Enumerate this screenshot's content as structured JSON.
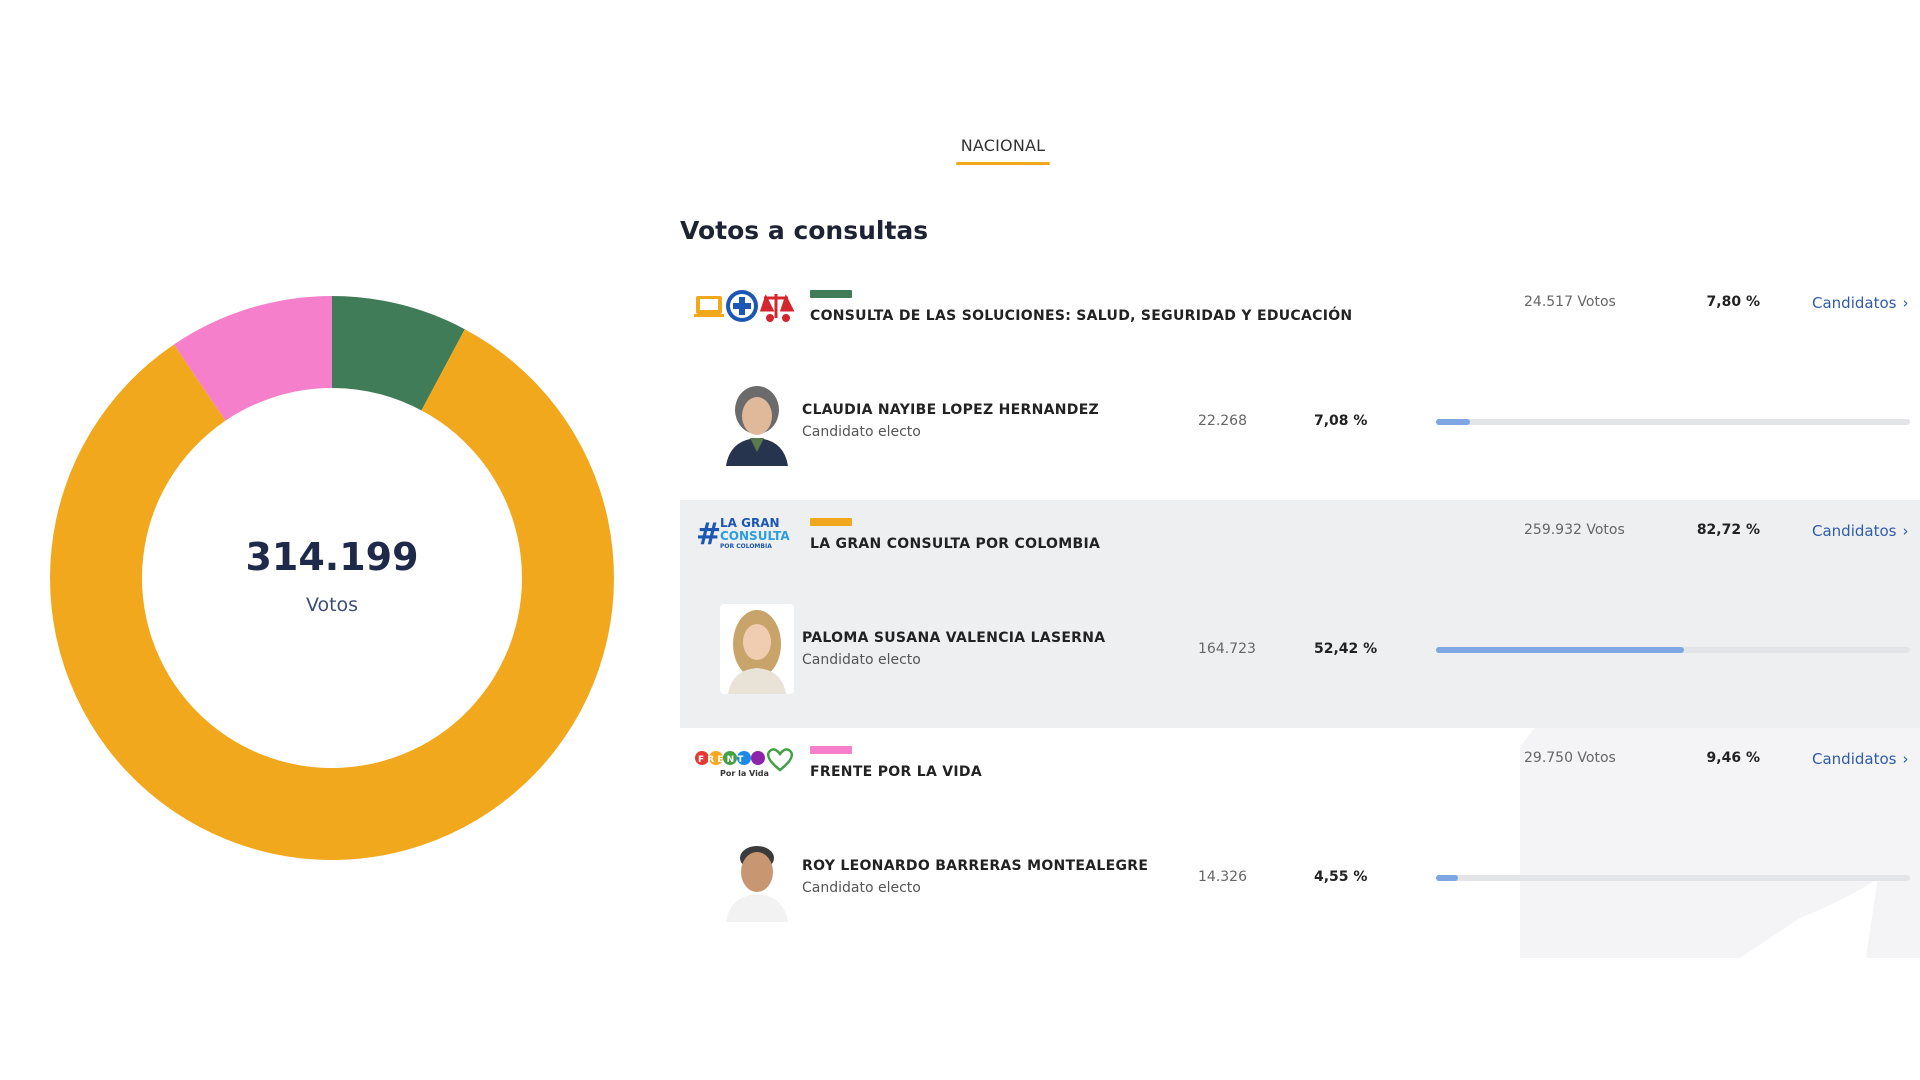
{
  "tabs": [
    {
      "label": "NACIONAL",
      "active": true
    }
  ],
  "section_title": "Votos a consultas",
  "total": {
    "value": "314.199",
    "unit": "Votos"
  },
  "colors": {
    "accent": "#f2a81d",
    "bar": "#7da6e3",
    "link": "#2f5ba7"
  },
  "chart_data": {
    "type": "pie",
    "donut": true,
    "series": [
      {
        "name": "CONSULTA DE LAS SOLUCIONES: SALUD, SEGURIDAD Y EDUCACIÓN",
        "value": 24517,
        "color": "#3f7c57"
      },
      {
        "name": "LA GRAN CONSULTA POR COLOMBIA",
        "value": 259932,
        "color": "#f2a81d"
      },
      {
        "name": "FRENTE POR LA VIDA",
        "value": 29750,
        "color": "#f57fca"
      }
    ]
  },
  "consultas": [
    {
      "logo_icon": "consulta-soluciones-logo-icon",
      "color": "#3f7c57",
      "name": "CONSULTA DE LAS SOLUCIONES: SALUD, SEGURIDAD Y EDUCACIÓN",
      "votes": "24.517 Votos",
      "pct": "7,80 %",
      "link": "Candidatos",
      "shaded": false,
      "candidate": {
        "name": "CLAUDIA NAYIBE LOPEZ HERNANDEZ",
        "status": "Candidato electo",
        "votes": "22.268",
        "pct": "7,08 %",
        "share": 7.08
      }
    },
    {
      "logo_icon": "la-gran-consulta-logo-icon",
      "logo_text": "#LA GRAN CONSULTA POR COLOMBIA",
      "color": "#f2a81d",
      "name": "LA GRAN CONSULTA POR COLOMBIA",
      "votes": "259.932 Votos",
      "pct": "82,72 %",
      "link": "Candidatos",
      "shaded": true,
      "candidate": {
        "name": "PALOMA SUSANA VALENCIA LASERNA",
        "status": "Candidato electo",
        "votes": "164.723",
        "pct": "52,42 %",
        "share": 52.42
      }
    },
    {
      "logo_icon": "frente-por-la-vida-logo-icon",
      "logo_text": "FRENTE Por la Vida",
      "color": "#f57fca",
      "name": "FRENTE POR LA VIDA",
      "votes": "29.750 Votos",
      "pct": "9,46 %",
      "link": "Candidatos",
      "shaded": false,
      "candidate": {
        "name": "ROY LEONARDO BARRERAS MONTEALEGRE",
        "status": "Candidato electo",
        "votes": "14.326",
        "pct": "4,55 %",
        "share": 4.55
      }
    }
  ]
}
